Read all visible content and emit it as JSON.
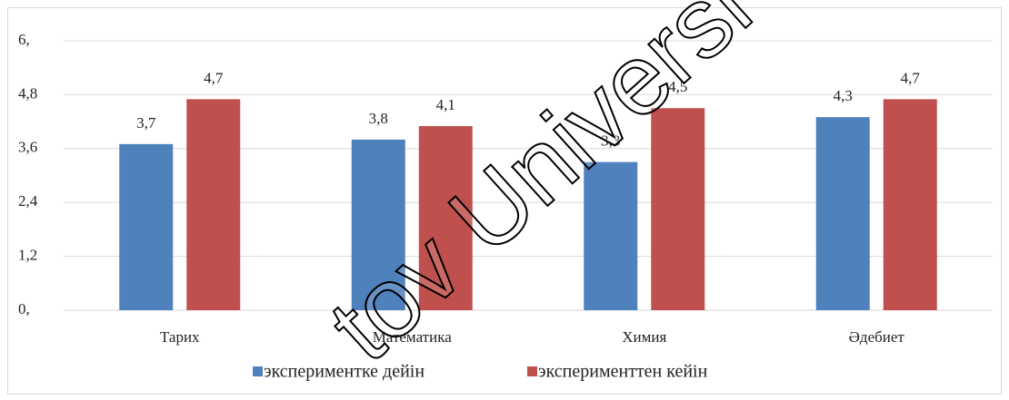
{
  "chart_data": {
    "type": "bar",
    "categories": [
      "Тарих",
      "Математика",
      "Химия",
      "Әдебиет"
    ],
    "series": [
      {
        "name": "экспериментке дейін",
        "color": "#4f81bd",
        "values": [
          3.7,
          3.8,
          3.3,
          4.3
        ],
        "value_labels": [
          "3,7",
          "3,8",
          "3,3",
          "4,3"
        ]
      },
      {
        "name": "эксперименттен кейін",
        "color": "#c0504d",
        "values": [
          4.7,
          4.1,
          4.5,
          4.7
        ],
        "value_labels": [
          "4,7",
          "4,1",
          "4,5",
          "4,7"
        ]
      }
    ],
    "ylim": [
      0,
      6
    ],
    "yticks": [
      {
        "value": 0,
        "label": "0,"
      },
      {
        "value": 1.2,
        "label": "1,2"
      },
      {
        "value": 2.4,
        "label": "2,4"
      },
      {
        "value": 3.6,
        "label": "3,6"
      },
      {
        "value": 4.8,
        "label": "4,8"
      },
      {
        "value": 6,
        "label": "6,"
      }
    ],
    "grid": true,
    "legend": "bottom",
    "watermark": "tov Universi"
  }
}
